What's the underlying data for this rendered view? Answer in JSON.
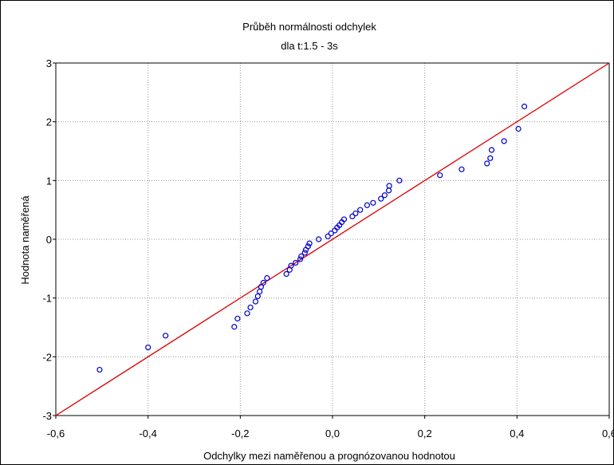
{
  "chart_data": {
    "type": "scatter",
    "title": "Průběh normálnosti odchylek",
    "subtitle": "dla t:1.5 - 3s",
    "xlabel": "Odchylky mezi naměřenou a prognózovanou hodnotou",
    "ylabel": "Hodnota naměřená",
    "xlim": [
      -0.6,
      0.6
    ],
    "ylim": [
      -3,
      3
    ],
    "x_ticks": [
      -0.6,
      -0.4,
      -0.2,
      0.0,
      0.2,
      0.4,
      0.6
    ],
    "x_tick_labels": [
      "-0,6",
      "-0,4",
      "-0,2",
      "0,0",
      "0,2",
      "0,4",
      "0,6"
    ],
    "y_ticks": [
      3,
      2,
      1,
      0,
      -1,
      -2,
      -3
    ],
    "y_tick_labels": [
      "3",
      "2",
      "1",
      "0",
      "-1",
      "-2",
      "-3"
    ],
    "grid": true,
    "marker_color": "#0000cc",
    "line_color": "#dd0000",
    "fit_line": {
      "x": [
        -0.6,
        0.6
      ],
      "y": [
        -3,
        3
      ]
    },
    "points": [
      {
        "x": -0.505,
        "y": -2.22
      },
      {
        "x": -0.4,
        "y": -1.84
      },
      {
        "x": -0.362,
        "y": -1.64
      },
      {
        "x": -0.213,
        "y": -1.49
      },
      {
        "x": -0.206,
        "y": -1.35
      },
      {
        "x": -0.185,
        "y": -1.26
      },
      {
        "x": -0.178,
        "y": -1.16
      },
      {
        "x": -0.167,
        "y": -1.06
      },
      {
        "x": -0.162,
        "y": -0.97
      },
      {
        "x": -0.158,
        "y": -0.89
      },
      {
        "x": -0.155,
        "y": -0.81
      },
      {
        "x": -0.15,
        "y": -0.74
      },
      {
        "x": -0.142,
        "y": -0.66
      },
      {
        "x": -0.1,
        "y": -0.59
      },
      {
        "x": -0.093,
        "y": -0.52
      },
      {
        "x": -0.09,
        "y": -0.45
      },
      {
        "x": -0.08,
        "y": -0.4
      },
      {
        "x": -0.07,
        "y": -0.34
      },
      {
        "x": -0.068,
        "y": -0.29
      },
      {
        "x": -0.06,
        "y": -0.23
      },
      {
        "x": -0.058,
        "y": -0.18
      },
      {
        "x": -0.053,
        "y": -0.12
      },
      {
        "x": -0.05,
        "y": -0.07
      },
      {
        "x": -0.03,
        "y": 0.0
      },
      {
        "x": -0.01,
        "y": 0.05
      },
      {
        "x": -0.003,
        "y": 0.1
      },
      {
        "x": 0.005,
        "y": 0.15
      },
      {
        "x": 0.01,
        "y": 0.2
      },
      {
        "x": 0.015,
        "y": 0.24
      },
      {
        "x": 0.02,
        "y": 0.29
      },
      {
        "x": 0.025,
        "y": 0.34
      },
      {
        "x": 0.043,
        "y": 0.39
      },
      {
        "x": 0.05,
        "y": 0.44
      },
      {
        "x": 0.06,
        "y": 0.5
      },
      {
        "x": 0.075,
        "y": 0.58
      },
      {
        "x": 0.088,
        "y": 0.62
      },
      {
        "x": 0.105,
        "y": 0.69
      },
      {
        "x": 0.113,
        "y": 0.75
      },
      {
        "x": 0.122,
        "y": 0.83
      },
      {
        "x": 0.123,
        "y": 0.91
      },
      {
        "x": 0.145,
        "y": 1.0
      },
      {
        "x": 0.233,
        "y": 1.09
      },
      {
        "x": 0.28,
        "y": 1.19
      },
      {
        "x": 0.335,
        "y": 1.29
      },
      {
        "x": 0.342,
        "y": 1.38
      },
      {
        "x": 0.345,
        "y": 1.52
      },
      {
        "x": 0.372,
        "y": 1.67
      },
      {
        "x": 0.403,
        "y": 1.88
      },
      {
        "x": 0.416,
        "y": 2.26
      }
    ]
  }
}
